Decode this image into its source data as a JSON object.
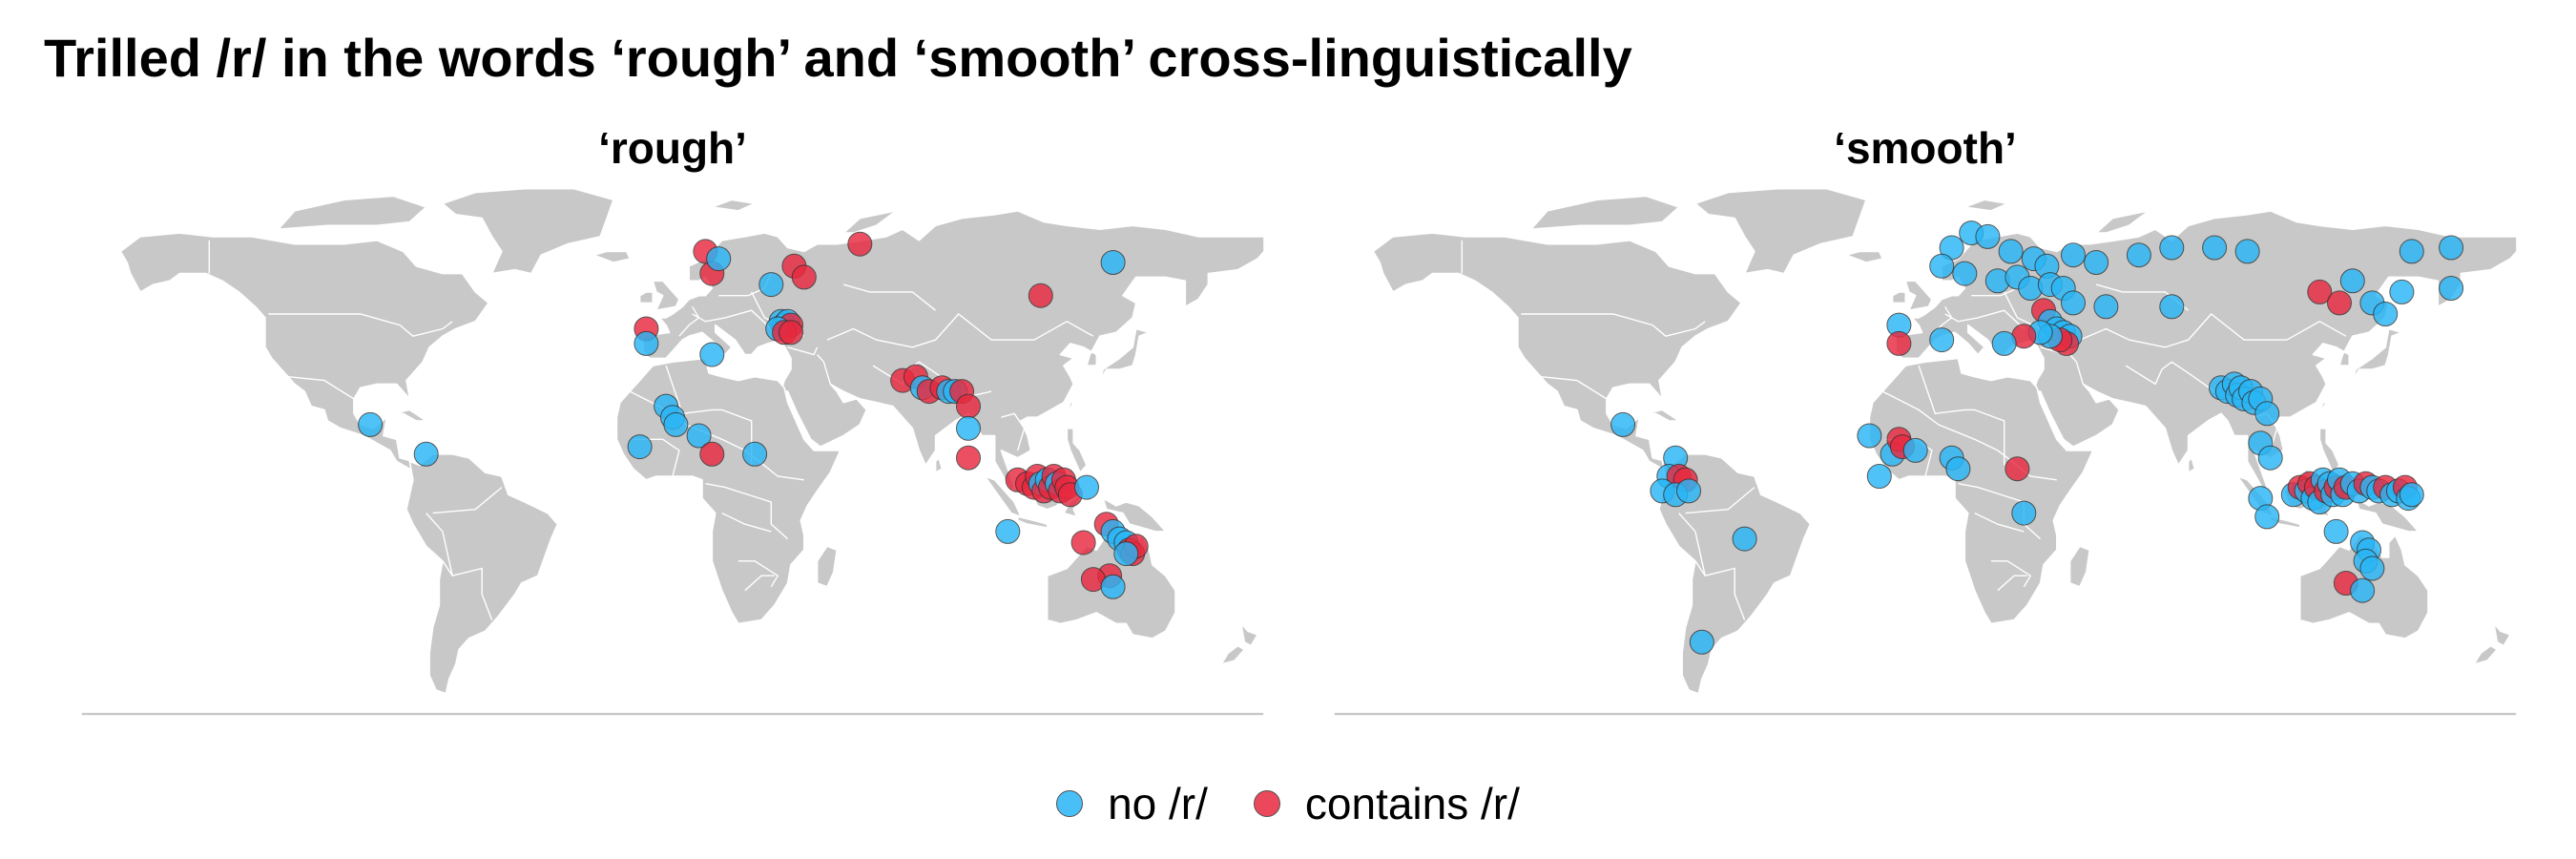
{
  "title": "Trilled /r/ in the words ‘rough’ and ‘smooth’ cross-linguistically",
  "colors": {
    "land": "#c8c8c8",
    "no_r": "#29b6f6",
    "contains_r": "#e8293f"
  },
  "legend": [
    {
      "label": "no /r/",
      "color_key": "no_r"
    },
    {
      "label": "contains /r/",
      "color_key": "contains_r"
    }
  ],
  "panels": [
    {
      "title": "‘rough’",
      "points": [
        {
          "lon": 10,
          "lat": 66,
          "r": true
        },
        {
          "lon": 12,
          "lat": 60,
          "r": true
        },
        {
          "lon": 14,
          "lat": 64,
          "r": false
        },
        {
          "lon": 37,
          "lat": 62,
          "r": true
        },
        {
          "lon": 40,
          "lat": 59,
          "r": true
        },
        {
          "lon": 57,
          "lat": 68,
          "r": true
        },
        {
          "lon": 134,
          "lat": 63,
          "r": false
        },
        {
          "lon": 30,
          "lat": 57,
          "r": false
        },
        {
          "lon": 33,
          "lat": 47,
          "r": false
        },
        {
          "lon": 34,
          "lat": 46,
          "r": false
        },
        {
          "lon": 35,
          "lat": 47,
          "r": false
        },
        {
          "lon": 36,
          "lat": 46,
          "r": true
        },
        {
          "lon": 32,
          "lat": 45,
          "r": false
        },
        {
          "lon": 34,
          "lat": 44,
          "r": true
        },
        {
          "lon": 36,
          "lat": 44,
          "r": true
        },
        {
          "lon": 112,
          "lat": 54,
          "r": true
        },
        {
          "lon": -8,
          "lat": 45,
          "r": true
        },
        {
          "lon": -8,
          "lat": 41,
          "r": false
        },
        {
          "lon": 12,
          "lat": 38,
          "r": false
        },
        {
          "lon": 70,
          "lat": 31,
          "r": true
        },
        {
          "lon": 74,
          "lat": 32,
          "r": true
        },
        {
          "lon": 76,
          "lat": 29,
          "r": false
        },
        {
          "lon": 78,
          "lat": 28,
          "r": true
        },
        {
          "lon": 82,
          "lat": 29,
          "r": true
        },
        {
          "lon": 84,
          "lat": 28,
          "r": false
        },
        {
          "lon": 86,
          "lat": 28,
          "r": false
        },
        {
          "lon": 88,
          "lat": 28,
          "r": true
        },
        {
          "lon": 90,
          "lat": 24,
          "r": true
        },
        {
          "lon": 90,
          "lat": 18,
          "r": false
        },
        {
          "lon": 90,
          "lat": 10,
          "r": true
        },
        {
          "lon": -92,
          "lat": 19,
          "r": false
        },
        {
          "lon": -75,
          "lat": 11,
          "r": false
        },
        {
          "lon": -2,
          "lat": 24,
          "r": false
        },
        {
          "lon": 0,
          "lat": 21,
          "r": false
        },
        {
          "lon": 1,
          "lat": 19,
          "r": false
        },
        {
          "lon": -10,
          "lat": 13,
          "r": false
        },
        {
          "lon": 8,
          "lat": 16,
          "r": false
        },
        {
          "lon": 12,
          "lat": 11,
          "r": true
        },
        {
          "lon": 25,
          "lat": 11,
          "r": false
        },
        {
          "lon": 105,
          "lat": 4,
          "r": true
        },
        {
          "lon": 108,
          "lat": 3,
          "r": true
        },
        {
          "lon": 110,
          "lat": 2,
          "r": true
        },
        {
          "lon": 111,
          "lat": 5,
          "r": true
        },
        {
          "lon": 112,
          "lat": 3,
          "r": false
        },
        {
          "lon": 113,
          "lat": 1,
          "r": true
        },
        {
          "lon": 114,
          "lat": 4,
          "r": false
        },
        {
          "lon": 115,
          "lat": 2,
          "r": true
        },
        {
          "lon": 116,
          "lat": 5,
          "r": true
        },
        {
          "lon": 117,
          "lat": 3,
          "r": false
        },
        {
          "lon": 118,
          "lat": 1,
          "r": true
        },
        {
          "lon": 119,
          "lat": 4,
          "r": true
        },
        {
          "lon": 120,
          "lat": 2,
          "r": true
        },
        {
          "lon": 121,
          "lat": 0,
          "r": true
        },
        {
          "lon": 126,
          "lat": 2,
          "r": false
        },
        {
          "lon": 132,
          "lat": -8,
          "r": true
        },
        {
          "lon": 134,
          "lat": -10,
          "r": false
        },
        {
          "lon": 136,
          "lat": -12,
          "r": false
        },
        {
          "lon": 138,
          "lat": -13,
          "r": false
        },
        {
          "lon": 139,
          "lat": -15,
          "r": true
        },
        {
          "lon": 140,
          "lat": -16,
          "r": true
        },
        {
          "lon": 141,
          "lat": -14,
          "r": true
        },
        {
          "lon": 138,
          "lat": -16,
          "r": false
        },
        {
          "lon": 125,
          "lat": -13,
          "r": true
        },
        {
          "lon": 102,
          "lat": -10,
          "r": false
        },
        {
          "lon": 133,
          "lat": -22,
          "r": true
        },
        {
          "lon": 128,
          "lat": -23,
          "r": true
        },
        {
          "lon": 134,
          "lat": -25,
          "r": false
        }
      ]
    },
    {
      "title": "‘smooth’",
      "points": [
        {
          "lon": 8,
          "lat": 67,
          "r": false
        },
        {
          "lon": 14,
          "lat": 71,
          "r": false
        },
        {
          "lon": 19,
          "lat": 70,
          "r": false
        },
        {
          "lon": 26,
          "lat": 66,
          "r": false
        },
        {
          "lon": 33,
          "lat": 64,
          "r": false
        },
        {
          "lon": 37,
          "lat": 62,
          "r": false
        },
        {
          "lon": 45,
          "lat": 65,
          "r": false
        },
        {
          "lon": 52,
          "lat": 63,
          "r": false
        },
        {
          "lon": 65,
          "lat": 65,
          "r": false
        },
        {
          "lon": 75,
          "lat": 67,
          "r": false
        },
        {
          "lon": 88,
          "lat": 67,
          "r": false
        },
        {
          "lon": 98,
          "lat": 66,
          "r": false
        },
        {
          "lon": 148,
          "lat": 66,
          "r": false
        },
        {
          "lon": 160,
          "lat": 67,
          "r": false
        },
        {
          "lon": 5,
          "lat": 62,
          "r": false
        },
        {
          "lon": 12,
          "lat": 60,
          "r": false
        },
        {
          "lon": 22,
          "lat": 58,
          "r": false
        },
        {
          "lon": 28,
          "lat": 59,
          "r": false
        },
        {
          "lon": 32,
          "lat": 56,
          "r": false
        },
        {
          "lon": 38,
          "lat": 57,
          "r": false
        },
        {
          "lon": 42,
          "lat": 56,
          "r": false
        },
        {
          "lon": 45,
          "lat": 52,
          "r": false
        },
        {
          "lon": 55,
          "lat": 51,
          "r": false
        },
        {
          "lon": 75,
          "lat": 51,
          "r": false
        },
        {
          "lon": 120,
          "lat": 55,
          "r": true
        },
        {
          "lon": 126,
          "lat": 52,
          "r": true
        },
        {
          "lon": 130,
          "lat": 58,
          "r": false
        },
        {
          "lon": 136,
          "lat": 52,
          "r": false
        },
        {
          "lon": 140,
          "lat": 49,
          "r": false
        },
        {
          "lon": 145,
          "lat": 55,
          "r": false
        },
        {
          "lon": 160,
          "lat": 56,
          "r": false
        },
        {
          "lon": 36,
          "lat": 50,
          "r": true
        },
        {
          "lon": 38,
          "lat": 47,
          "r": false
        },
        {
          "lon": 40,
          "lat": 45,
          "r": false
        },
        {
          "lon": 42,
          "lat": 44,
          "r": false
        },
        {
          "lon": 44,
          "lat": 43,
          "r": false
        },
        {
          "lon": 43,
          "lat": 41,
          "r": true
        },
        {
          "lon": 41,
          "lat": 42,
          "r": true
        },
        {
          "lon": 38,
          "lat": 43,
          "r": false
        },
        {
          "lon": 35,
          "lat": 44,
          "r": false
        },
        {
          "lon": 30,
          "lat": 43,
          "r": true
        },
        {
          "lon": 24,
          "lat": 41,
          "r": false
        },
        {
          "lon": -8,
          "lat": 46,
          "r": false
        },
        {
          "lon": -8,
          "lat": 41,
          "r": true
        },
        {
          "lon": 5,
          "lat": 42,
          "r": false
        },
        {
          "lon": 90,
          "lat": 29,
          "r": false
        },
        {
          "lon": 92,
          "lat": 28,
          "r": false
        },
        {
          "lon": 94,
          "lat": 30,
          "r": false
        },
        {
          "lon": 95,
          "lat": 27,
          "r": false
        },
        {
          "lon": 96,
          "lat": 29,
          "r": false
        },
        {
          "lon": 97,
          "lat": 26,
          "r": false
        },
        {
          "lon": 99,
          "lat": 28,
          "r": false
        },
        {
          "lon": 100,
          "lat": 25,
          "r": false
        },
        {
          "lon": 102,
          "lat": 26,
          "r": false
        },
        {
          "lon": 104,
          "lat": 22,
          "r": false
        },
        {
          "lon": 102,
          "lat": 14,
          "r": false
        },
        {
          "lon": 105,
          "lat": 10,
          "r": false
        },
        {
          "lon": -92,
          "lat": 19,
          "r": false
        },
        {
          "lon": -76,
          "lat": 10,
          "r": false
        },
        {
          "lon": -78,
          "lat": 5,
          "r": false
        },
        {
          "lon": -75,
          "lat": 5,
          "r": true
        },
        {
          "lon": -73,
          "lat": 4,
          "r": true
        },
        {
          "lon": -80,
          "lat": 1,
          "r": false
        },
        {
          "lon": -76,
          "lat": 0,
          "r": false
        },
        {
          "lon": -72,
          "lat": 1,
          "r": false
        },
        {
          "lon": -55,
          "lat": -12,
          "r": false
        },
        {
          "lon": -68,
          "lat": -40,
          "r": false
        },
        {
          "lon": -17,
          "lat": 16,
          "r": false
        },
        {
          "lon": -10,
          "lat": 11,
          "r": false
        },
        {
          "lon": -8,
          "lat": 15,
          "r": true
        },
        {
          "lon": -7,
          "lat": 13,
          "r": true
        },
        {
          "lon": -3,
          "lat": 12,
          "r": false
        },
        {
          "lon": -14,
          "lat": 5,
          "r": false
        },
        {
          "lon": 8,
          "lat": 10,
          "r": false
        },
        {
          "lon": 10,
          "lat": 7,
          "r": false
        },
        {
          "lon": 28,
          "lat": 7,
          "r": true
        },
        {
          "lon": 30,
          "lat": -5,
          "r": false
        },
        {
          "lon": 112,
          "lat": 0,
          "r": false
        },
        {
          "lon": 114,
          "lat": 2,
          "r": true
        },
        {
          "lon": 116,
          "lat": 1,
          "r": false
        },
        {
          "lon": 117,
          "lat": 3,
          "r": true
        },
        {
          "lon": 118,
          "lat": -1,
          "r": false
        },
        {
          "lon": 119,
          "lat": 2,
          "r": true
        },
        {
          "lon": 120,
          "lat": -2,
          "r": false
        },
        {
          "lon": 121,
          "lat": 4,
          "r": false
        },
        {
          "lon": 122,
          "lat": 1,
          "r": true
        },
        {
          "lon": 123,
          "lat": 3,
          "r": false
        },
        {
          "lon": 124,
          "lat": 0,
          "r": false
        },
        {
          "lon": 125,
          "lat": 2,
          "r": true
        },
        {
          "lon": 126,
          "lat": 4,
          "r": false
        },
        {
          "lon": 127,
          "lat": 0,
          "r": false
        },
        {
          "lon": 128,
          "lat": 2,
          "r": true
        },
        {
          "lon": 130,
          "lat": 3,
          "r": false
        },
        {
          "lon": 132,
          "lat": 1,
          "r": false
        },
        {
          "lon": 134,
          "lat": 3,
          "r": true
        },
        {
          "lon": 136,
          "lat": 2,
          "r": false
        },
        {
          "lon": 138,
          "lat": 1,
          "r": false
        },
        {
          "lon": 140,
          "lat": 2,
          "r": true
        },
        {
          "lon": 142,
          "lat": 0,
          "r": false
        },
        {
          "lon": 144,
          "lat": 1,
          "r": false
        },
        {
          "lon": 146,
          "lat": 2,
          "r": true
        },
        {
          "lon": 147,
          "lat": -1,
          "r": false
        },
        {
          "lon": 148,
          "lat": 0,
          "r": false
        },
        {
          "lon": 102,
          "lat": -1,
          "r": false
        },
        {
          "lon": 104,
          "lat": -6,
          "r": false
        },
        {
          "lon": 125,
          "lat": -10,
          "r": false
        },
        {
          "lon": 133,
          "lat": -13,
          "r": false
        },
        {
          "lon": 135,
          "lat": -15,
          "r": false
        },
        {
          "lon": 134,
          "lat": -18,
          "r": false
        },
        {
          "lon": 136,
          "lat": -20,
          "r": false
        },
        {
          "lon": 128,
          "lat": -24,
          "r": true
        },
        {
          "lon": 133,
          "lat": -26,
          "r": false
        }
      ]
    }
  ]
}
